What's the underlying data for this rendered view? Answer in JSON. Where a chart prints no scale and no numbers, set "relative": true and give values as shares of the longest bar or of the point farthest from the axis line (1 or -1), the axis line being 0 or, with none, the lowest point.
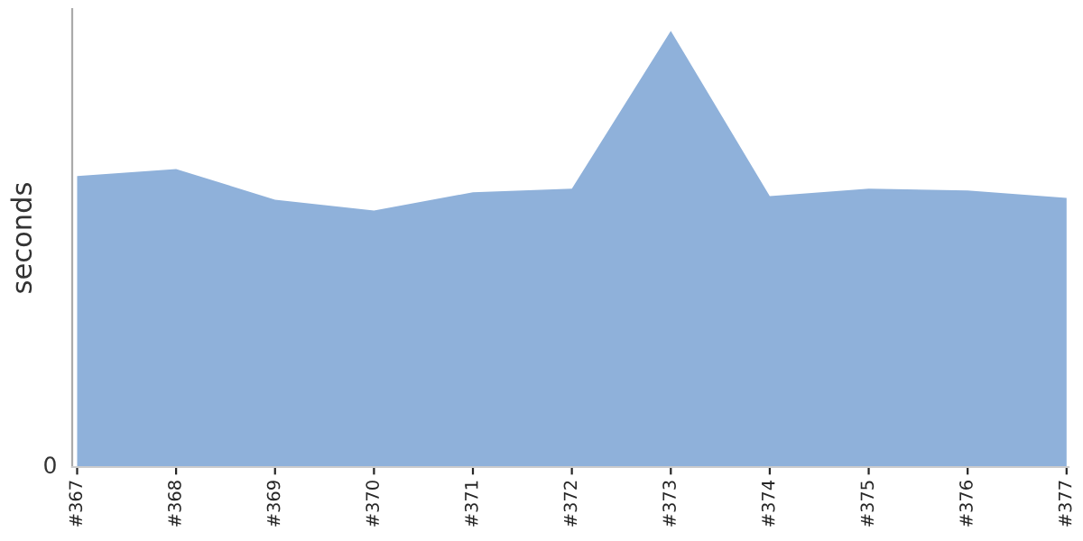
{
  "chart_data": {
    "type": "area",
    "relative": true,
    "ylabel": "seconds",
    "categories": [
      "#367",
      "#368",
      "#369",
      "#370",
      "#371",
      "#372",
      "#373",
      "#374",
      "#375",
      "#376",
      "#377"
    ],
    "series": [
      {
        "color": "#8fb1da",
        "values": [
          0.667,
          0.683,
          0.613,
          0.588,
          0.63,
          0.638,
          1,
          0.621,
          0.638,
          0.634,
          0.617
        ]
      }
    ],
    "annotations": [
      "0"
    ],
    "grid": false,
    "legend": false
  }
}
